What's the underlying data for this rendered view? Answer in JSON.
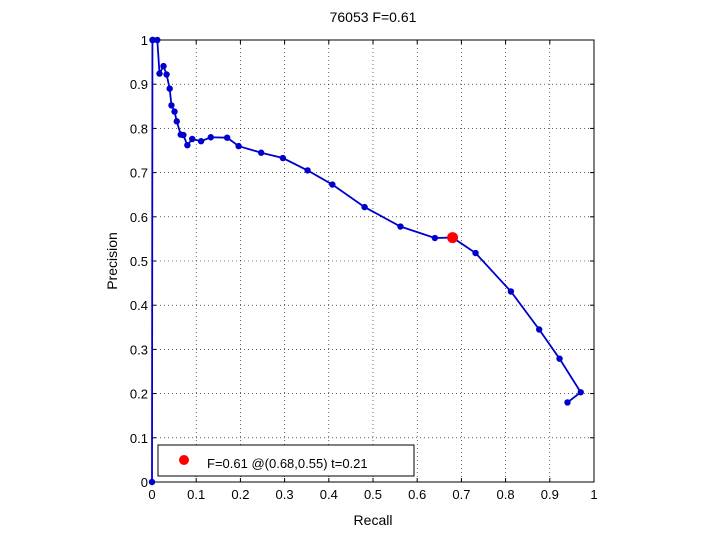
{
  "chart_data": {
    "type": "line",
    "title": "76053 F=0.61",
    "xlabel": "Recall",
    "ylabel": "Precision",
    "xlim": [
      0,
      1
    ],
    "ylim": [
      0,
      1
    ],
    "xticks": [
      0,
      0.1,
      0.2,
      0.3,
      0.4,
      0.5,
      0.6,
      0.7,
      0.8,
      0.9,
      1
    ],
    "yticks": [
      0,
      0.1,
      0.2,
      0.3,
      0.4,
      0.5,
      0.6,
      0.7,
      0.8,
      0.9,
      1
    ],
    "xtick_labels": [
      "0",
      "0.1",
      "0.2",
      "0.3",
      "0.4",
      "0.5",
      "0.6",
      "0.7",
      "0.8",
      "0.9",
      "1"
    ],
    "ytick_labels": [
      "0",
      "0.1",
      "0.2",
      "0.3",
      "0.4",
      "0.5",
      "0.6",
      "0.7",
      "0.8",
      "0.9",
      "1"
    ],
    "grid": true,
    "legend_position": "bottom-left",
    "series": [
      {
        "color": "#0000cc",
        "marker": "dot",
        "x": [
          0,
          0.001,
          0.002,
          0.012,
          0.017,
          0.026,
          0.033,
          0.04,
          0.044,
          0.051,
          0.056,
          0.065,
          0.071,
          0.08,
          0.091,
          0.111,
          0.133,
          0.17,
          0.196,
          0.247,
          0.296,
          0.352,
          0.408,
          0.481,
          0.562,
          0.64,
          0.68,
          0.732,
          0.812,
          0.876,
          0.922,
          0.97,
          0.94
        ],
        "y": [
          0,
          1.0,
          1.0,
          1.0,
          0.924,
          0.941,
          0.922,
          0.89,
          0.852,
          0.838,
          0.816,
          0.786,
          0.785,
          0.762,
          0.776,
          0.771,
          0.78,
          0.779,
          0.76,
          0.745,
          0.733,
          0.705,
          0.673,
          0.622,
          0.578,
          0.552,
          0.553,
          0.518,
          0.431,
          0.345,
          0.279,
          0.203,
          0.18
        ]
      }
    ],
    "highlight": {
      "x": 0.68,
      "y": 0.553,
      "color": "#ff0000",
      "legend": "F=0.61 @(0.68,0.55) t=0.21"
    }
  }
}
